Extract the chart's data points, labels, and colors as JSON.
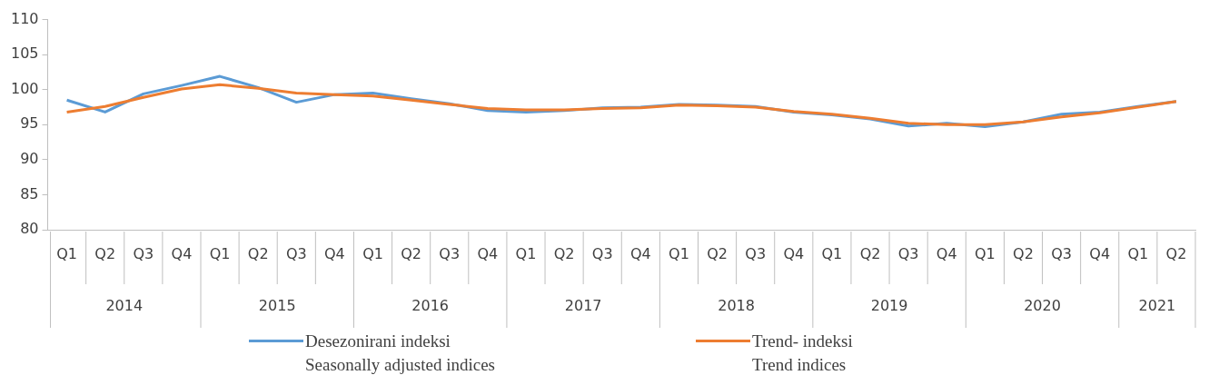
{
  "chart_data": {
    "type": "line",
    "categories": [
      "Q1",
      "Q2",
      "Q3",
      "Q4",
      "Q1",
      "Q2",
      "Q3",
      "Q4",
      "Q1",
      "Q2",
      "Q3",
      "Q4",
      "Q1",
      "Q2",
      "Q3",
      "Q4",
      "Q1",
      "Q2",
      "Q3",
      "Q4",
      "Q1",
      "Q2",
      "Q3",
      "Q4",
      "Q1",
      "Q2",
      "Q3",
      "Q4",
      "Q1",
      "Q2"
    ],
    "annotations": [
      "2014",
      "2015",
      "2016",
      "2017",
      "2018",
      "2019",
      "2020",
      "2021"
    ],
    "series": [
      {
        "name": "Desezonirani indeksi\nSeasonally adjusted indices",
        "color": "#5b9bd5",
        "values": [
          98.5,
          96.8,
          99.4,
          100.6,
          101.9,
          100.3,
          98.2,
          99.3,
          99.5,
          98.7,
          98.0,
          97.0,
          96.8,
          97.0,
          97.4,
          97.5,
          97.9,
          97.8,
          97.6,
          96.8,
          96.4,
          95.8,
          94.8,
          95.2,
          94.7,
          95.4,
          96.5,
          96.8,
          97.6,
          98.3
        ]
      },
      {
        "name": "Trend- indeksi\nTrend indices",
        "color": "#ed7d31",
        "values": [
          96.8,
          97.6,
          98.9,
          100.1,
          100.7,
          100.2,
          99.5,
          99.3,
          99.1,
          98.5,
          97.9,
          97.3,
          97.1,
          97.1,
          97.3,
          97.4,
          97.8,
          97.7,
          97.5,
          96.9,
          96.5,
          95.9,
          95.2,
          95.0,
          95.0,
          95.4,
          96.1,
          96.7,
          97.5,
          98.3
        ]
      }
    ],
    "ylim": [
      80,
      110
    ],
    "yticks": [
      80,
      85,
      90,
      95,
      100,
      105,
      110
    ],
    "grid": false,
    "legend": "bottom",
    "marker": "none",
    "line_style": "solid"
  }
}
